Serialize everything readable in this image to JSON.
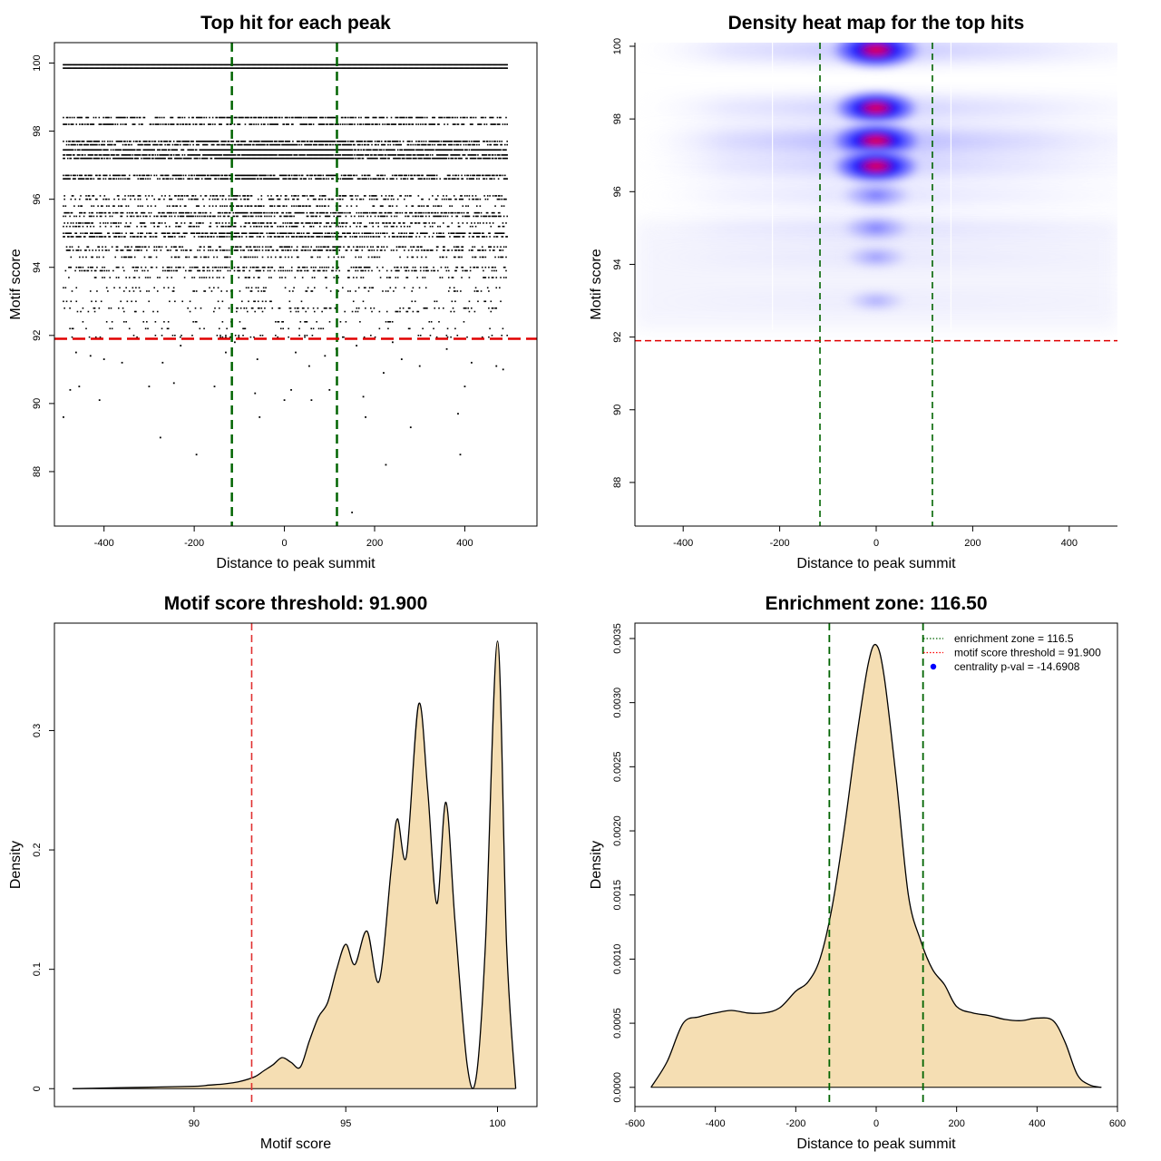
{
  "chart_data": [
    {
      "type": "scatter",
      "title": "Top hit for each peak",
      "xlabel": "Distance to peak summit",
      "ylabel": "Motif score",
      "xlim": [
        -510,
        560
      ],
      "ylim": [
        86.4,
        100.6
      ],
      "xticks": [
        -400,
        -200,
        0,
        200,
        400
      ],
      "yticks": [
        88,
        90,
        92,
        94,
        96,
        98,
        100
      ],
      "vlines": [
        -116.5,
        116.5
      ],
      "hline": 91.9,
      "score_levels": [
        {
          "score": 99.95,
          "density": 1.0
        },
        {
          "score": 99.85,
          "density": 1.0
        },
        {
          "score": 98.4,
          "density": 0.55
        },
        {
          "score": 98.2,
          "density": 0.5
        },
        {
          "score": 97.7,
          "density": 0.65
        },
        {
          "score": 97.6,
          "density": 0.65
        },
        {
          "score": 97.45,
          "density": 0.85
        },
        {
          "score": 97.3,
          "density": 0.75
        },
        {
          "score": 97.2,
          "density": 0.8
        },
        {
          "score": 96.7,
          "density": 0.6
        },
        {
          "score": 96.6,
          "density": 0.55
        },
        {
          "score": 96.1,
          "density": 0.35
        },
        {
          "score": 96.0,
          "density": 0.3
        },
        {
          "score": 95.8,
          "density": 0.3
        },
        {
          "score": 95.6,
          "density": 0.55
        },
        {
          "score": 95.5,
          "density": 0.4
        },
        {
          "score": 95.3,
          "density": 0.35
        },
        {
          "score": 95.2,
          "density": 0.3
        },
        {
          "score": 95.0,
          "density": 0.6
        },
        {
          "score": 94.9,
          "density": 0.5
        },
        {
          "score": 94.6,
          "density": 0.3
        },
        {
          "score": 94.5,
          "density": 0.4
        },
        {
          "score": 94.3,
          "density": 0.25
        },
        {
          "score": 94.0,
          "density": 0.35
        },
        {
          "score": 93.9,
          "density": 0.3
        },
        {
          "score": 93.7,
          "density": 0.2
        },
        {
          "score": 93.4,
          "density": 0.12
        },
        {
          "score": 93.3,
          "density": 0.12
        },
        {
          "score": 93.0,
          "density": 0.1
        },
        {
          "score": 92.8,
          "density": 0.15
        },
        {
          "score": 92.7,
          "density": 0.1
        },
        {
          "score": 92.4,
          "density": 0.07
        },
        {
          "score": 92.2,
          "density": 0.07
        },
        {
          "score": 92.0,
          "density": 0.06
        },
        {
          "score": 91.95,
          "density": 0.05
        }
      ],
      "outlier_points": [
        {
          "x": -490,
          "y": 89.6
        },
        {
          "x": -475,
          "y": 90.4
        },
        {
          "x": -462,
          "y": 91.5
        },
        {
          "x": -455,
          "y": 90.5
        },
        {
          "x": -430,
          "y": 91.4
        },
        {
          "x": -410,
          "y": 90.1
        },
        {
          "x": -400,
          "y": 91.3
        },
        {
          "x": -360,
          "y": 91.2
        },
        {
          "x": -300,
          "y": 90.5
        },
        {
          "x": -275,
          "y": 89.0
        },
        {
          "x": -270,
          "y": 91.2
        },
        {
          "x": -245,
          "y": 90.6
        },
        {
          "x": -230,
          "y": 91.7
        },
        {
          "x": -195,
          "y": 88.5
        },
        {
          "x": -155,
          "y": 90.5
        },
        {
          "x": -130,
          "y": 91.5
        },
        {
          "x": -110,
          "y": 91.8
        },
        {
          "x": -60,
          "y": 91.3
        },
        {
          "x": -65,
          "y": 90.3
        },
        {
          "x": -55,
          "y": 89.6
        },
        {
          "x": 0,
          "y": 90.1
        },
        {
          "x": 15,
          "y": 90.4
        },
        {
          "x": 25,
          "y": 91.5
        },
        {
          "x": 55,
          "y": 91.1
        },
        {
          "x": 60,
          "y": 90.1
        },
        {
          "x": 90,
          "y": 91.4
        },
        {
          "x": 100,
          "y": 90.4
        },
        {
          "x": 115,
          "y": 91.6
        },
        {
          "x": 150,
          "y": 86.8
        },
        {
          "x": 160,
          "y": 91.7
        },
        {
          "x": 175,
          "y": 90.2
        },
        {
          "x": 180,
          "y": 89.6
        },
        {
          "x": 220,
          "y": 90.9
        },
        {
          "x": 240,
          "y": 91.8
        },
        {
          "x": 260,
          "y": 91.3
        },
        {
          "x": 280,
          "y": 89.3
        },
        {
          "x": 300,
          "y": 91.1
        },
        {
          "x": 360,
          "y": 91.6
        },
        {
          "x": 385,
          "y": 89.7
        },
        {
          "x": 390,
          "y": 88.5
        },
        {
          "x": 400,
          "y": 90.5
        },
        {
          "x": 415,
          "y": 91.2
        },
        {
          "x": 470,
          "y": 91.1
        },
        {
          "x": 485,
          "y": 91.0
        },
        {
          "x": 225,
          "y": 88.2
        }
      ]
    },
    {
      "type": "heatmap",
      "title": "Density heat map for the top hits",
      "xlabel": "Distance to peak summit",
      "ylabel": "Motif score",
      "xlim": [
        -500,
        500
      ],
      "ylim": [
        86.8,
        100.1
      ],
      "xticks": [
        -400,
        -200,
        0,
        200,
        400
      ],
      "yticks": [
        88,
        90,
        92,
        94,
        96,
        98,
        100
      ],
      "vlines": [
        -116.5,
        116.5
      ],
      "hline": 91.9,
      "score_bands": [
        {
          "score": 99.9,
          "center": 1.0,
          "flank": 0.35
        },
        {
          "score": 98.3,
          "center": 0.85,
          "flank": 0.3
        },
        {
          "score": 97.4,
          "center": 1.0,
          "flank": 0.45
        },
        {
          "score": 96.7,
          "center": 0.9,
          "flank": 0.3
        },
        {
          "score": 95.9,
          "center": 0.45,
          "flank": 0.18
        },
        {
          "score": 95.0,
          "center": 0.38,
          "flank": 0.15
        },
        {
          "score": 94.2,
          "center": 0.2,
          "flank": 0.08
        },
        {
          "score": 93.0,
          "center": 0.1,
          "flank": 0.05
        }
      ]
    },
    {
      "type": "area",
      "title": "Motif score threshold: 91.900",
      "xlabel": "Motif score",
      "ylabel": "Density",
      "xlim": [
        85.4,
        101.3
      ],
      "ylim": [
        -0.015,
        0.39
      ],
      "xticks": [
        90,
        95,
        100
      ],
      "yticks": [
        0.0,
        0.1,
        0.2,
        0.3
      ],
      "threshold": 91.9,
      "fill_color": "#f5deb3",
      "x": [
        86.0,
        88.0,
        90.0,
        90.5,
        91.0,
        91.5,
        92.0,
        92.3,
        92.6,
        92.9,
        93.2,
        93.5,
        93.8,
        94.1,
        94.4,
        94.7,
        95.0,
        95.3,
        95.7,
        96.1,
        96.5,
        96.7,
        97.0,
        97.4,
        97.7,
        98.0,
        98.3,
        98.6,
        99.0,
        99.3,
        99.6,
        100.0,
        100.3,
        100.6
      ],
      "y": [
        0.0,
        0.001,
        0.002,
        0.003,
        0.004,
        0.006,
        0.01,
        0.015,
        0.02,
        0.026,
        0.022,
        0.018,
        0.04,
        0.06,
        0.072,
        0.1,
        0.121,
        0.104,
        0.132,
        0.09,
        0.185,
        0.226,
        0.195,
        0.322,
        0.25,
        0.155,
        0.24,
        0.14,
        0.02,
        0.01,
        0.12,
        0.375,
        0.12,
        0.0
      ]
    },
    {
      "type": "area",
      "title": "Enrichment zone: 116.50",
      "xlabel": "Distance to peak summit",
      "ylabel": "Density",
      "xlim": [
        -600,
        600
      ],
      "ylim": [
        -0.00015,
        0.00362
      ],
      "xticks": [
        -600,
        -400,
        -200,
        0,
        200,
        400,
        600
      ],
      "yticks": [
        0.0,
        0.0005,
        0.001,
        0.0015,
        0.002,
        0.0025,
        0.003,
        0.0035
      ],
      "ytick_labels": [
        "0.0000",
        "0.0005",
        "0.0010",
        "0.0015",
        "0.0020",
        "0.0025",
        "0.0030",
        "0.0035"
      ],
      "vlines": [
        -116.5,
        116.5
      ],
      "fill_color": "#f5deb3",
      "legend_position": "top-right",
      "legend": [
        {
          "label": "enrichment zone = 116.5",
          "color": "#006400",
          "style": "dotted-line"
        },
        {
          "label": "motif score threshold = 91.900",
          "color": "#ff0000",
          "style": "dotted-line"
        },
        {
          "label": "centrality p-val = -14.6908",
          "color": "#0000ff",
          "style": "point"
        }
      ],
      "x": [
        -560,
        -520,
        -480,
        -440,
        -400,
        -360,
        -320,
        -280,
        -240,
        -200,
        -170,
        -140,
        -110,
        -80,
        -50,
        -20,
        0,
        20,
        50,
        80,
        110,
        140,
        170,
        200,
        240,
        280,
        320,
        360,
        400,
        440,
        470,
        500,
        530,
        560
      ],
      "y": [
        0.0,
        0.0002,
        0.0005,
        0.00055,
        0.00058,
        0.0006,
        0.00058,
        0.00058,
        0.00062,
        0.00075,
        0.00082,
        0.001,
        0.0014,
        0.002,
        0.0027,
        0.0033,
        0.00345,
        0.0032,
        0.0024,
        0.0015,
        0.00115,
        0.00092,
        0.0008,
        0.00063,
        0.00058,
        0.00056,
        0.00053,
        0.00052,
        0.00054,
        0.00052,
        0.00035,
        0.0001,
        2e-05,
        0.0
      ]
    }
  ]
}
